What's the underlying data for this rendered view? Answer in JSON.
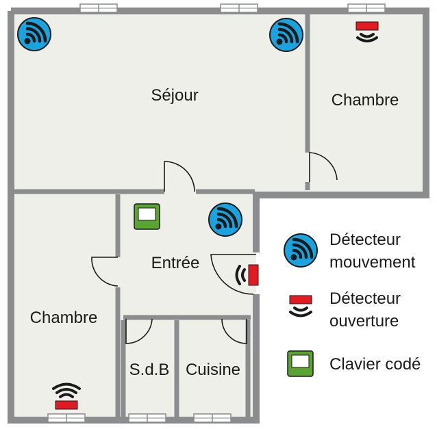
{
  "rooms": {
    "sejour": "Séjour",
    "chambre_haut": "Chambre",
    "entree": "Entrée",
    "chambre_bas": "Chambre",
    "sdb": "S.d.B",
    "cuisine": "Cuisine"
  },
  "legend": {
    "motion": {
      "line1": "Détecteur",
      "line2": "mouvement",
      "icon": "motion-detector-icon"
    },
    "opening": {
      "line1": "Détecteur",
      "line2": "ouverture",
      "icon": "opening-detector-icon"
    },
    "keypad": {
      "label": "Clavier codé",
      "icon": "keypad-icon"
    }
  },
  "colors": {
    "wall": "#8a8c8e",
    "floor": "#efefe9",
    "motion_blue": "#1aa3de",
    "opening_red": "#e21b23",
    "keypad_green": "#5aa532"
  }
}
